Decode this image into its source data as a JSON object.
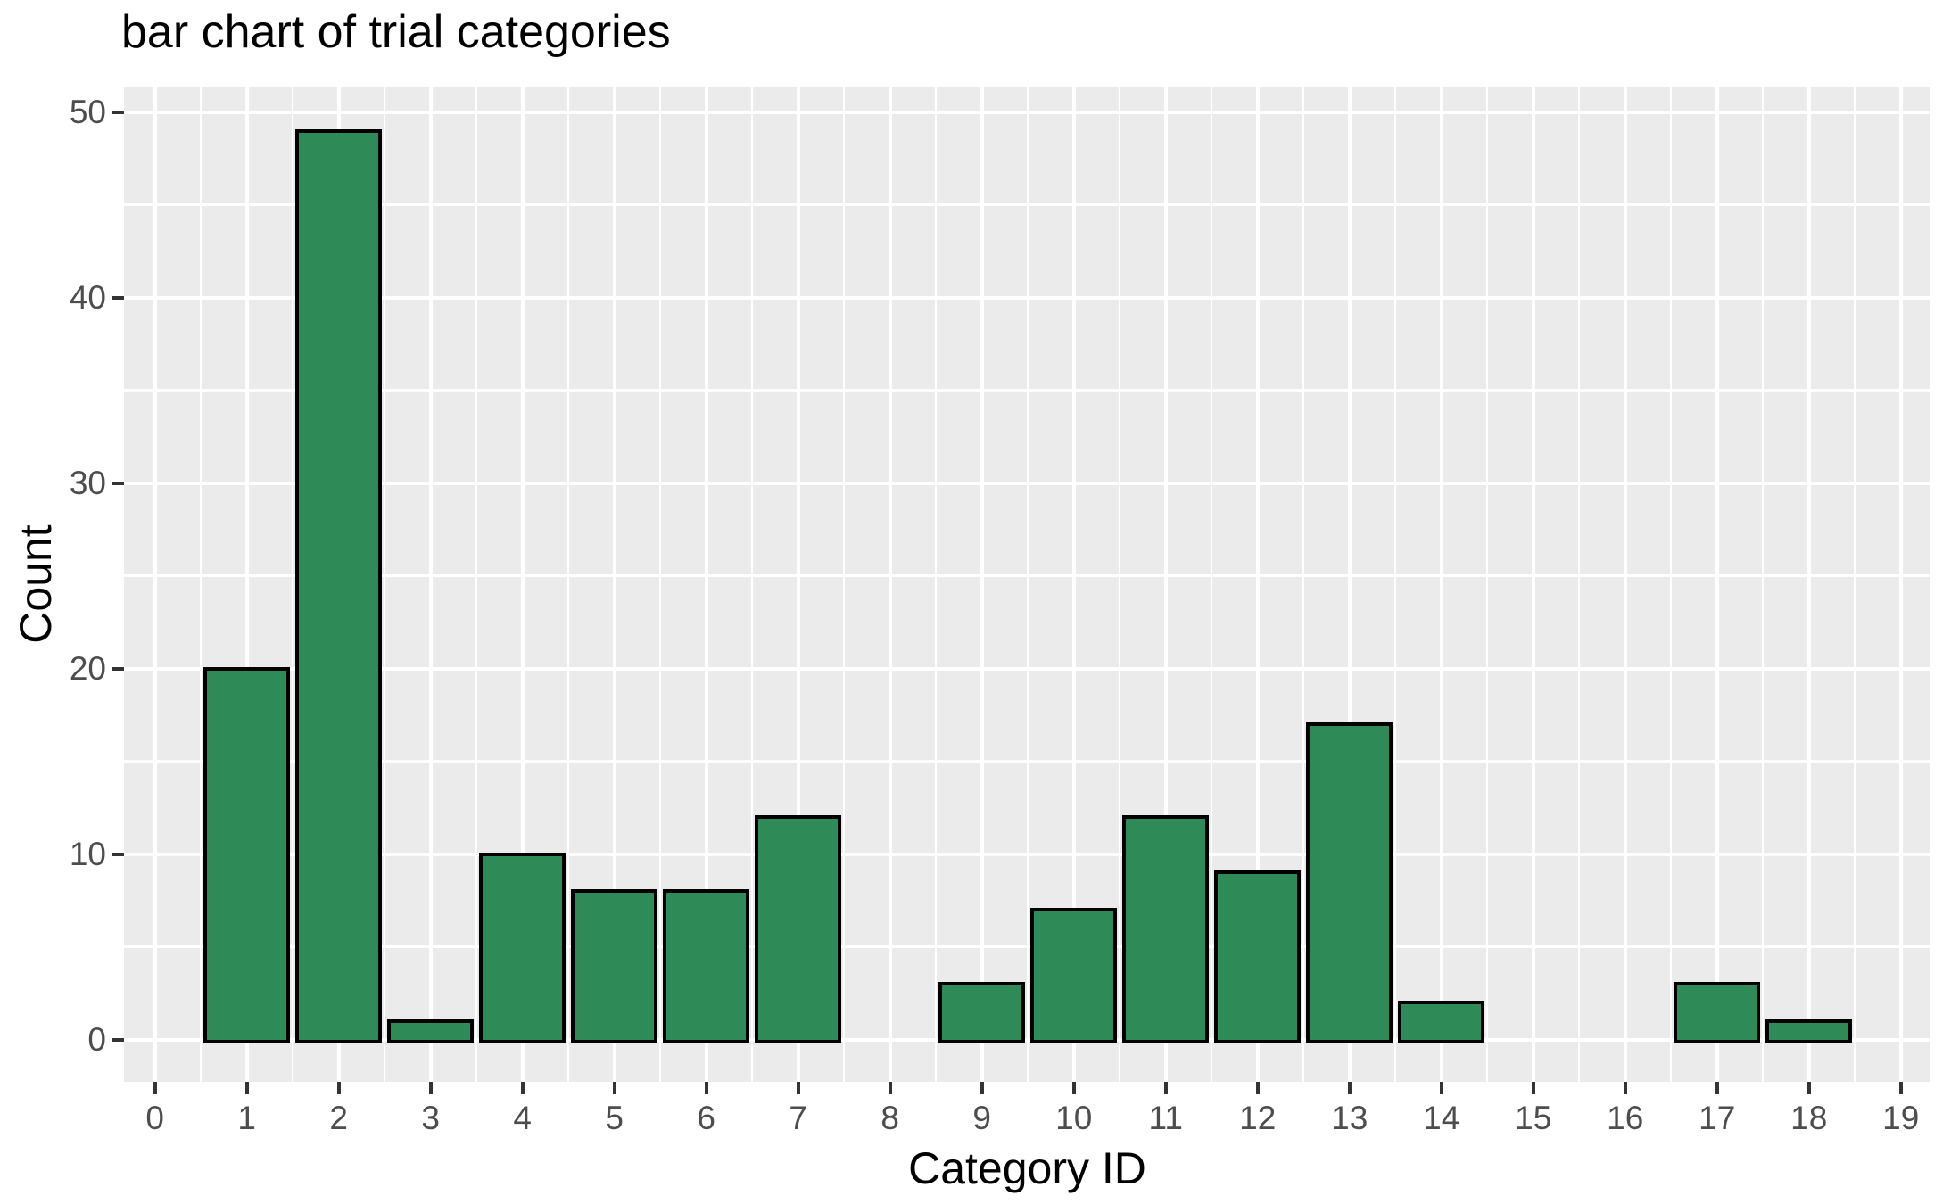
{
  "chart_data": {
    "type": "bar",
    "title": "bar chart of trial categories",
    "xlabel": "Category ID",
    "ylabel": "Count",
    "categories": [
      0,
      1,
      2,
      3,
      4,
      5,
      6,
      7,
      8,
      9,
      10,
      11,
      12,
      13,
      14,
      15,
      16,
      17,
      18,
      19
    ],
    "values": [
      0,
      20,
      49,
      1,
      10,
      8,
      8,
      12,
      0,
      3,
      7,
      12,
      9,
      17,
      2,
      0,
      0,
      3,
      1,
      0
    ],
    "x_ticks": [
      0,
      1,
      2,
      3,
      4,
      5,
      6,
      7,
      8,
      9,
      10,
      11,
      12,
      13,
      14,
      15,
      16,
      17,
      18,
      19
    ],
    "y_ticks": [
      0,
      10,
      20,
      30,
      40,
      50
    ],
    "xlim": [
      -0.337,
      19.323
    ],
    "ylim": [
      -2.276,
      51.38
    ],
    "bar_width": 0.9,
    "grid": {
      "major": true,
      "minor": true
    },
    "legend": "none"
  },
  "colors": {
    "bar_fill": "#2E8B57",
    "bar_stroke": "#000000",
    "panel_background": "#EBEBEB",
    "gridline": "#FFFFFF",
    "tick_label": "#4D4D4D",
    "tick_mark": "#333333",
    "title_text": "#000000",
    "figure_background": "#FFFFFF"
  }
}
